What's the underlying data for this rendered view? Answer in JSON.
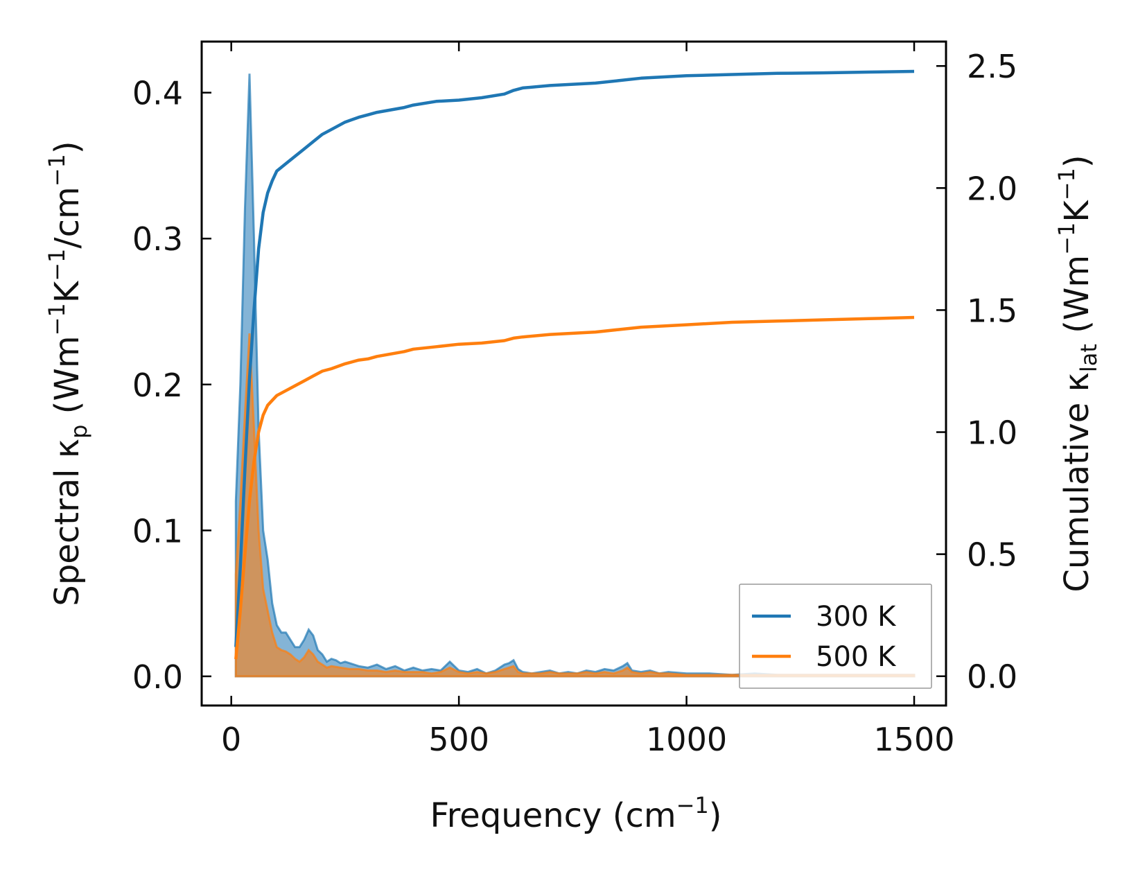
{
  "chart_data": {
    "type": "area",
    "title": "",
    "xlabel": "Frequency (cm⁻¹)",
    "xlabel_main": "Frequency (cm",
    "xlabel_sup": "−1",
    "xlabel_close": ")",
    "ylabel_left_parts": [
      "Spectral κ",
      "p",
      " (Wm",
      "−1",
      "K",
      "−1",
      "/cm",
      "−1",
      ")"
    ],
    "ylabel_right_parts": [
      "Cumulative κ",
      "lat",
      " (Wm",
      "−1",
      "K",
      "−1",
      ")"
    ],
    "xlim": [
      -65,
      1570
    ],
    "ylim_left": [
      -0.02,
      0.435
    ],
    "ylim_right": [
      -0.12,
      2.6
    ],
    "x_ticks": [
      0,
      500,
      1000,
      1500
    ],
    "x_tick_labels": [
      "0",
      "500",
      "1000",
      "1500"
    ],
    "y_left_ticks": [
      0.0,
      0.1,
      0.2,
      0.3,
      0.4
    ],
    "y_left_tick_labels": [
      "0.0",
      "0.1",
      "0.2",
      "0.3",
      "0.4"
    ],
    "y_right_ticks": [
      0.0,
      0.5,
      1.0,
      1.5,
      2.0,
      2.5
    ],
    "y_right_tick_labels": [
      "0.0",
      "0.5",
      "1.0",
      "1.5",
      "2.0",
      "2.5"
    ],
    "legend_position": "lower-right",
    "grid": false,
    "series": [
      {
        "name": "300 K",
        "color": "#1f77b4",
        "spectral": {
          "x": [
            10,
            20,
            30,
            40,
            50,
            60,
            70,
            80,
            90,
            100,
            110,
            120,
            130,
            140,
            150,
            160,
            170,
            180,
            190,
            200,
            210,
            220,
            230,
            240,
            250,
            260,
            270,
            280,
            300,
            320,
            340,
            360,
            380,
            400,
            420,
            440,
            460,
            480,
            500,
            520,
            540,
            560,
            580,
            600,
            610,
            620,
            630,
            640,
            660,
            680,
            700,
            720,
            740,
            760,
            780,
            800,
            820,
            840,
            860,
            870,
            880,
            900,
            920,
            940,
            960,
            1000,
            1050,
            1100,
            1150,
            1200,
            1300,
            1400,
            1500
          ],
          "y": [
            0.12,
            0.2,
            0.32,
            0.413,
            0.3,
            0.17,
            0.1,
            0.08,
            0.05,
            0.035,
            0.03,
            0.03,
            0.025,
            0.02,
            0.02,
            0.025,
            0.032,
            0.028,
            0.018,
            0.015,
            0.01,
            0.012,
            0.011,
            0.009,
            0.01,
            0.009,
            0.008,
            0.007,
            0.006,
            0.008,
            0.005,
            0.007,
            0.004,
            0.006,
            0.004,
            0.005,
            0.004,
            0.01,
            0.004,
            0.003,
            0.005,
            0.002,
            0.004,
            0.008,
            0.009,
            0.011,
            0.005,
            0.003,
            0.002,
            0.003,
            0.004,
            0.002,
            0.003,
            0.002,
            0.004,
            0.003,
            0.005,
            0.004,
            0.007,
            0.009,
            0.004,
            0.003,
            0.004,
            0.002,
            0.003,
            0.002,
            0.002,
            0.001,
            0.002,
            0.001,
            0.001,
            0.001,
            0.001
          ]
        },
        "cumulative": {
          "x": [
            10,
            20,
            30,
            40,
            50,
            60,
            70,
            80,
            90,
            100,
            120,
            140,
            160,
            180,
            200,
            220,
            250,
            280,
            300,
            320,
            350,
            380,
            400,
            450,
            500,
            550,
            600,
            620,
            640,
            700,
            750,
            800,
            850,
            900,
            1000,
            1100,
            1200,
            1300,
            1400,
            1500
          ],
          "y": [
            0.12,
            0.45,
            0.85,
            1.22,
            1.5,
            1.75,
            1.9,
            1.98,
            2.03,
            2.07,
            2.1,
            2.13,
            2.16,
            2.19,
            2.22,
            2.24,
            2.27,
            2.29,
            2.3,
            2.31,
            2.32,
            2.33,
            2.34,
            2.355,
            2.36,
            2.37,
            2.385,
            2.4,
            2.41,
            2.42,
            2.425,
            2.43,
            2.44,
            2.45,
            2.46,
            2.465,
            2.47,
            2.472,
            2.475,
            2.478
          ]
        }
      },
      {
        "name": "500 K",
        "color": "#ff7f0e",
        "spectral": {
          "x": [
            10,
            20,
            30,
            40,
            50,
            60,
            70,
            80,
            90,
            100,
            110,
            120,
            130,
            140,
            150,
            160,
            170,
            180,
            190,
            200,
            210,
            220,
            240,
            260,
            280,
            300,
            320,
            340,
            360,
            380,
            400,
            420,
            440,
            460,
            480,
            500,
            520,
            540,
            560,
            580,
            600,
            610,
            620,
            630,
            640,
            660,
            680,
            700,
            720,
            740,
            760,
            780,
            800,
            820,
            840,
            860,
            870,
            880,
            900,
            920,
            940,
            960,
            1000,
            1050,
            1100,
            1150,
            1200,
            1300,
            1400,
            1500
          ],
          "y": [
            0.07,
            0.12,
            0.18,
            0.235,
            0.17,
            0.1,
            0.06,
            0.045,
            0.03,
            0.02,
            0.018,
            0.017,
            0.015,
            0.012,
            0.01,
            0.013,
            0.018,
            0.015,
            0.01,
            0.008,
            0.006,
            0.007,
            0.006,
            0.005,
            0.005,
            0.004,
            0.004,
            0.003,
            0.004,
            0.003,
            0.003,
            0.003,
            0.002,
            0.003,
            0.006,
            0.003,
            0.002,
            0.003,
            0.002,
            0.003,
            0.005,
            0.006,
            0.007,
            0.003,
            0.002,
            0.002,
            0.002,
            0.003,
            0.002,
            0.002,
            0.002,
            0.003,
            0.002,
            0.003,
            0.002,
            0.004,
            0.006,
            0.003,
            0.002,
            0.003,
            0.002,
            0.002,
            0.001,
            0.001,
            0.001,
            0.001,
            0.001,
            0.001,
            0.001,
            0.001
          ]
        },
        "cumulative": {
          "x": [
            10,
            20,
            30,
            40,
            50,
            60,
            70,
            80,
            90,
            100,
            120,
            140,
            160,
            180,
            200,
            220,
            250,
            280,
            300,
            320,
            350,
            380,
            400,
            450,
            500,
            550,
            600,
            620,
            640,
            700,
            750,
            800,
            850,
            900,
            1000,
            1100,
            1200,
            1300,
            1400,
            1500
          ],
          "y": [
            0.07,
            0.27,
            0.5,
            0.72,
            0.88,
            1.0,
            1.07,
            1.11,
            1.13,
            1.15,
            1.17,
            1.19,
            1.21,
            1.23,
            1.25,
            1.26,
            1.28,
            1.295,
            1.3,
            1.31,
            1.32,
            1.33,
            1.34,
            1.35,
            1.36,
            1.365,
            1.375,
            1.385,
            1.39,
            1.4,
            1.405,
            1.41,
            1.42,
            1.43,
            1.44,
            1.45,
            1.455,
            1.46,
            1.465,
            1.47
          ]
        }
      }
    ]
  }
}
